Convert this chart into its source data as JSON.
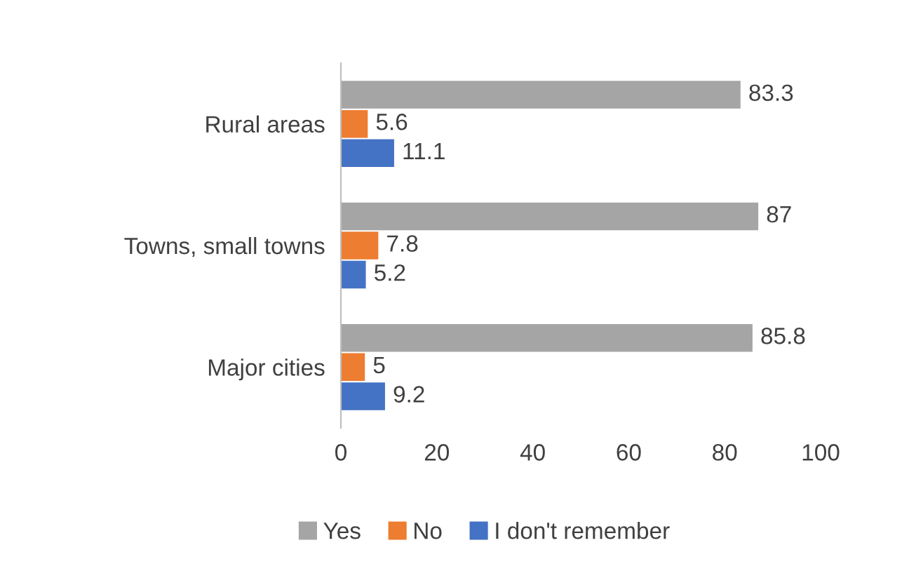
{
  "chart_data": {
    "type": "bar",
    "orientation": "horizontal",
    "categories": [
      "Rural areas",
      "Towns, small towns",
      "Major cities"
    ],
    "series": [
      {
        "name": "Yes",
        "color": "#a5a5a5",
        "values": [
          83.3,
          87,
          85.8
        ]
      },
      {
        "name": "No",
        "color": "#ed7d31",
        "values": [
          5.6,
          7.8,
          5
        ]
      },
      {
        "name": "I don't remember",
        "color": "#4472c4",
        "values": [
          11.1,
          5.2,
          9.2
        ]
      }
    ],
    "xlim": [
      0,
      100
    ],
    "xticks": [
      0,
      20,
      40,
      60,
      80,
      100
    ],
    "data_labels": true,
    "grid": false,
    "legend": "bottom"
  }
}
